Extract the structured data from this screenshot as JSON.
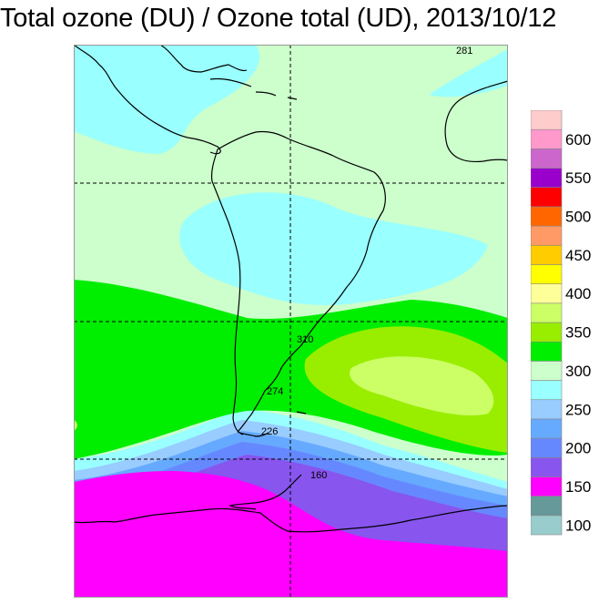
{
  "title": "Total ozone (DU) / Ozone total (UD), 2013/10/12",
  "legend": {
    "bins": [
      {
        "from": 100,
        "to": 125,
        "color": "#99cccc"
      },
      {
        "from": 125,
        "to": 150,
        "color": "#669999"
      },
      {
        "from": 150,
        "to": 175,
        "color": "#ff00ff"
      },
      {
        "from": 175,
        "to": 200,
        "color": "#8855ee"
      },
      {
        "from": 200,
        "to": 225,
        "color": "#6688ff"
      },
      {
        "from": 225,
        "to": 250,
        "color": "#66aaff"
      },
      {
        "from": 250,
        "to": 275,
        "color": "#99ccff"
      },
      {
        "from": 275,
        "to": 300,
        "color": "#99ffff"
      },
      {
        "from": 300,
        "to": 325,
        "color": "#ccffcc"
      },
      {
        "from": 325,
        "to": 350,
        "color": "#00ee00"
      },
      {
        "from": 350,
        "to": 375,
        "color": "#99ee00"
      },
      {
        "from": 375,
        "to": 400,
        "color": "#ccff66"
      },
      {
        "from": 400,
        "to": 425,
        "color": "#ffff99"
      },
      {
        "from": 425,
        "to": 450,
        "color": "#ffff00"
      },
      {
        "from": 450,
        "to": 475,
        "color": "#ffcc00"
      },
      {
        "from": 475,
        "to": 500,
        "color": "#ff9966"
      },
      {
        "from": 500,
        "to": 525,
        "color": "#ff6600"
      },
      {
        "from": 525,
        "to": 550,
        "color": "#ff0000"
      },
      {
        "from": 550,
        "to": 575,
        "color": "#9900cc"
      },
      {
        "from": 575,
        "to": 600,
        "color": "#cc66cc"
      },
      {
        "from": 600,
        "to": 625,
        "color": "#ff99cc"
      },
      {
        "from": 625,
        "to": 650,
        "color": "#ffcccc"
      }
    ],
    "tick_labels": [
      "100",
      "150",
      "200",
      "250",
      "300",
      "350",
      "400",
      "450",
      "500",
      "550",
      "600"
    ]
  },
  "map": {
    "contour_labels": [
      "281",
      "310",
      "274",
      "226",
      "160"
    ],
    "gridline_style": "dashed"
  }
}
